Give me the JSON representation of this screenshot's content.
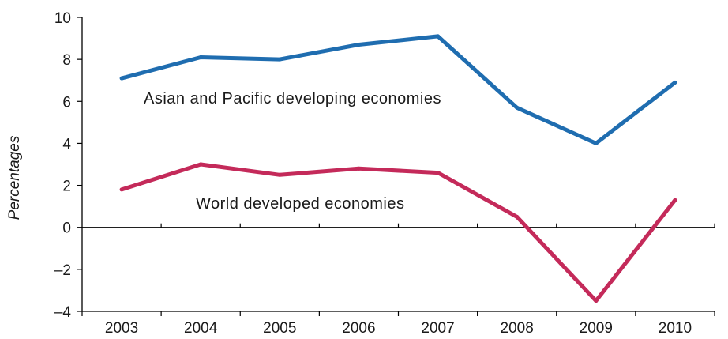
{
  "chart_data": {
    "type": "line",
    "categories": [
      "2003",
      "2004",
      "2005",
      "2006",
      "2007",
      "2008",
      "2009",
      "2010"
    ],
    "series": [
      {
        "name": "Asian and Pacific developing economies",
        "color": "#1f6db0",
        "values": [
          7.1,
          8.1,
          8.0,
          8.7,
          9.1,
          5.7,
          4.0,
          6.9
        ]
      },
      {
        "name": "World developed economies",
        "color": "#c42a5a",
        "values": [
          1.8,
          3.0,
          2.5,
          2.8,
          2.6,
          0.5,
          -3.5,
          1.3
        ]
      }
    ],
    "title": "",
    "xlabel": "",
    "ylabel": "Percentages",
    "ylim": [
      -4,
      10
    ],
    "yticks": [
      "10",
      "8",
      "6",
      "4",
      "2",
      "0",
      "–2",
      "–4"
    ],
    "grid": false,
    "legend": "inline labels"
  }
}
